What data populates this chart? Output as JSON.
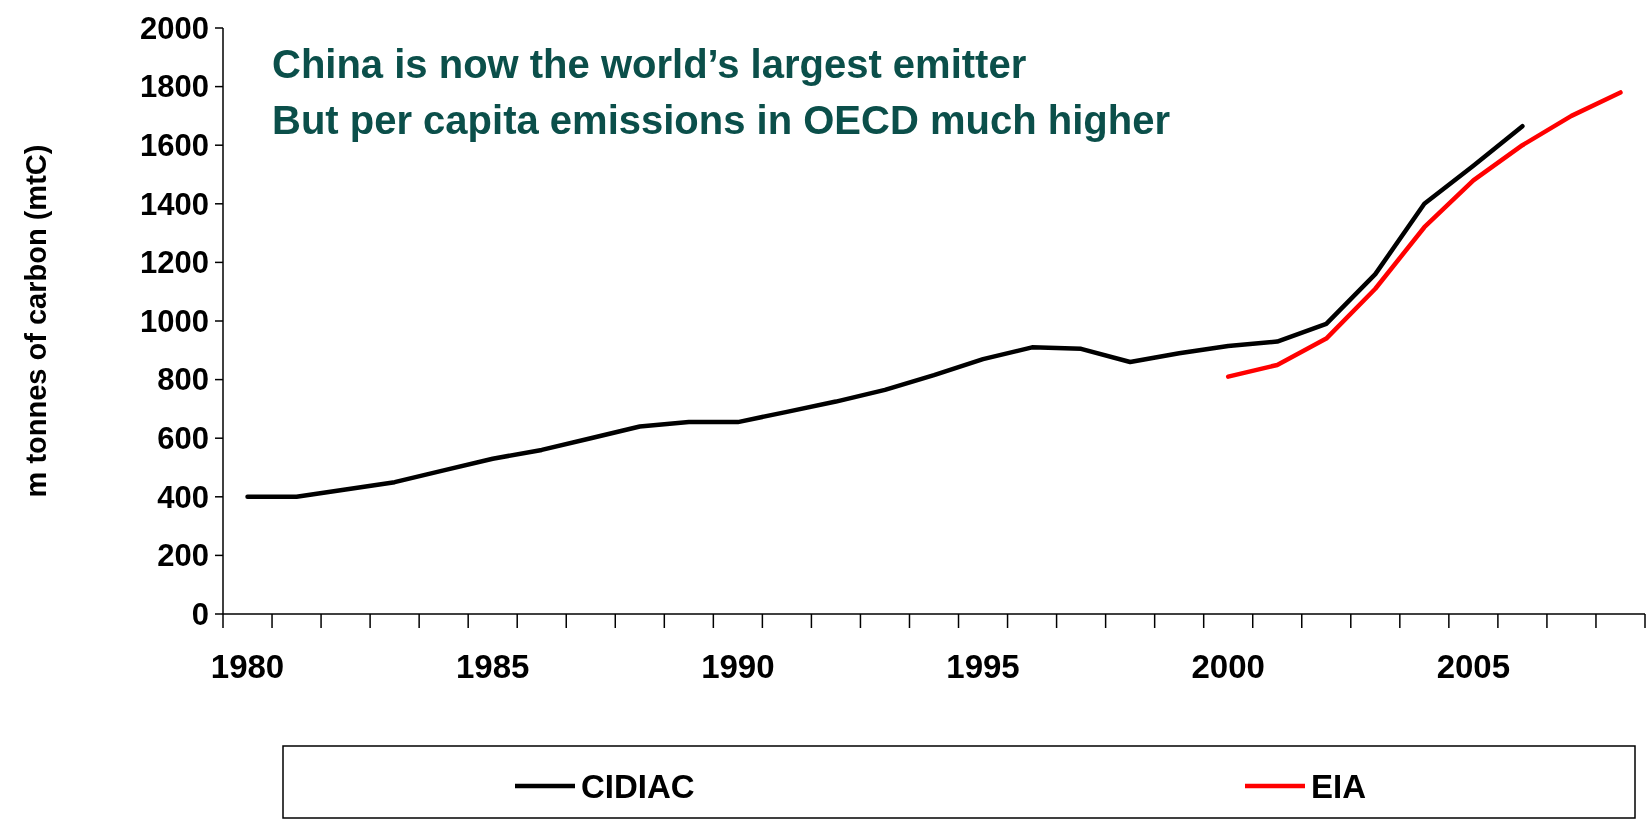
{
  "chart_data": {
    "type": "line",
    "title": "China is now the world’s largest emitter",
    "subtitle": "But per capita emissions in OECD much higher",
    "ylabel": "m tonnes of carbon (mtC)",
    "categories": [
      "1980",
      null,
      null,
      null,
      null,
      "1985",
      null,
      null,
      null,
      null,
      "1990",
      null,
      null,
      null,
      null,
      "1995",
      null,
      null,
      null,
      null,
      "2000",
      null,
      null,
      null,
      null,
      "2005",
      null,
      null,
      null
    ],
    "ylim": [
      0,
      2000
    ],
    "yticks": [
      0,
      200,
      400,
      600,
      800,
      1000,
      1200,
      1400,
      1600,
      1800,
      2000
    ],
    "legend": "bottom",
    "grid": false,
    "marker": "none",
    "line_style": "solid",
    "series": [
      {
        "name": "CIDIAC",
        "color": "#000000",
        "values": [
          400,
          400,
          425,
          450,
          490,
          530,
          560,
          600,
          640,
          655,
          655,
          690,
          725,
          765,
          815,
          870,
          910,
          905,
          860,
          890,
          915,
          930,
          990,
          1160,
          1400,
          1530,
          1665,
          null,
          null
        ]
      },
      {
        "name": "EIA",
        "color": "#ff0000",
        "values": [
          null,
          null,
          null,
          null,
          null,
          null,
          null,
          null,
          null,
          null,
          null,
          null,
          null,
          null,
          null,
          null,
          null,
          null,
          null,
          null,
          810,
          850,
          940,
          1110,
          1320,
          1480,
          1600,
          1700,
          1780
        ]
      }
    ]
  }
}
